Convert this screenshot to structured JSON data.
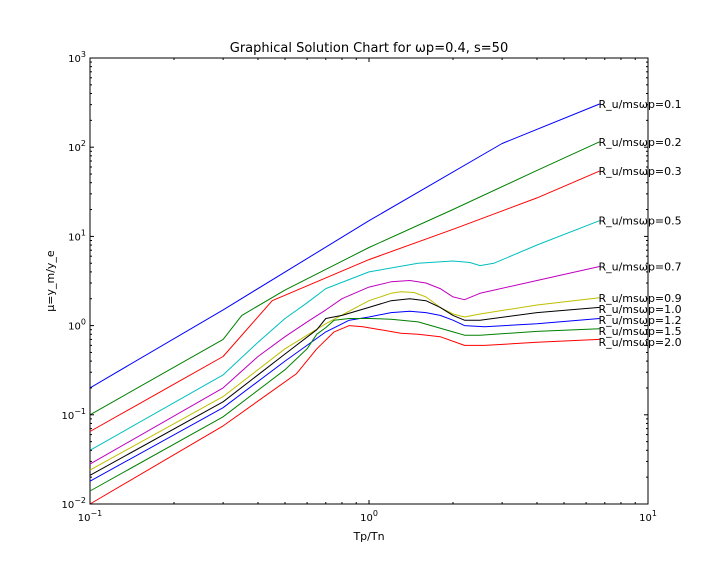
{
  "chart_data": {
    "type": "line",
    "title": "Graphical Solution Chart for ωp=0.4, s=50",
    "xlabel": "Tp/Tn",
    "ylabel": "μ=y_m/y_e",
    "xscale": "log",
    "yscale": "log",
    "xlim": [
      0.1,
      10
    ],
    "ylim": [
      0.01,
      1000
    ],
    "x_ticks": [
      {
        "value": 0.1,
        "base": "10",
        "exp": "−1"
      },
      {
        "value": 1,
        "base": "10",
        "exp": "0"
      },
      {
        "value": 10,
        "base": "10",
        "exp": "1"
      }
    ],
    "y_ticks": [
      {
        "value": 0.01,
        "base": "10",
        "exp": "−2"
      },
      {
        "value": 0.1,
        "base": "10",
        "exp": "−1"
      },
      {
        "value": 1,
        "base": "10",
        "exp": "0"
      },
      {
        "value": 10,
        "base": "10",
        "exp": "1"
      },
      {
        "value": 100,
        "base": "10",
        "exp": "2"
      },
      {
        "value": 1000,
        "base": "10",
        "exp": "3"
      }
    ],
    "grid": false,
    "series": [
      {
        "name": "R_u/msωp=0.1",
        "color": "#0000ff",
        "x": [
          0.1,
          0.3,
          1,
          3,
          6.7
        ],
        "y": [
          0.2,
          1.5,
          15,
          110,
          305
        ]
      },
      {
        "name": "R_u/msωp=0.2",
        "color": "#008000",
        "x": [
          0.1,
          0.3,
          0.35,
          0.5,
          1,
          2,
          4,
          6.7
        ],
        "y": [
          0.1,
          0.7,
          1.3,
          2.5,
          7.5,
          20,
          55,
          115
        ]
      },
      {
        "name": "R_u/msωp=0.3",
        "color": "#ff0000",
        "x": [
          0.1,
          0.3,
          0.45,
          1,
          2,
          4,
          6.7
        ],
        "y": [
          0.065,
          0.45,
          1.9,
          5.5,
          12,
          27,
          54
        ]
      },
      {
        "name": "R_u/msωp=0.5",
        "color": "#00bfbf",
        "x": [
          0.1,
          0.3,
          0.4,
          0.5,
          0.6,
          0.7,
          1,
          1.5,
          2,
          2.3,
          2.5,
          2.8,
          4,
          6.7
        ],
        "y": [
          0.04,
          0.28,
          0.65,
          1.2,
          1.8,
          2.6,
          4,
          5,
          5.3,
          5.1,
          4.7,
          5,
          8,
          15
        ]
      },
      {
        "name": "R_u/msωp=0.7",
        "color": "#bf00bf",
        "x": [
          0.1,
          0.3,
          0.4,
          0.5,
          0.6,
          0.7,
          0.8,
          1,
          1.2,
          1.4,
          1.6,
          1.8,
          2,
          2.2,
          2.5,
          4,
          6.7
        ],
        "y": [
          0.028,
          0.2,
          0.45,
          0.75,
          1.1,
          1.5,
          2,
          2.7,
          3.1,
          3.2,
          3,
          2.6,
          2.1,
          1.95,
          2.3,
          3.2,
          4.6
        ]
      },
      {
        "name": "R_u/msωp=0.9",
        "color": "#bfbf00",
        "x": [
          0.1,
          0.3,
          0.5,
          0.7,
          0.9,
          1,
          1.2,
          1.3,
          1.45,
          1.6,
          1.8,
          2,
          2.2,
          2.5,
          4,
          6.7
        ],
        "y": [
          0.024,
          0.16,
          0.55,
          1.05,
          1.6,
          1.9,
          2.3,
          2.4,
          2.35,
          2.1,
          1.6,
          1.35,
          1.25,
          1.35,
          1.7,
          2.05
        ]
      },
      {
        "name": "R_u/msωp=1.0",
        "color": "#000000",
        "x": [
          0.1,
          0.3,
          0.5,
          0.65,
          0.7,
          0.8,
          1,
          1.2,
          1.4,
          1.6,
          1.8,
          2,
          2.2,
          2.5,
          4,
          6.7
        ],
        "y": [
          0.021,
          0.14,
          0.48,
          0.9,
          1.2,
          1.3,
          1.6,
          1.9,
          2,
          1.9,
          1.6,
          1.3,
          1.15,
          1.15,
          1.4,
          1.6
        ]
      },
      {
        "name": "R_u/msωp=1.2",
        "color": "#0000ff",
        "x": [
          0.1,
          0.3,
          0.5,
          0.7,
          0.85,
          1,
          1.2,
          1.4,
          1.6,
          1.8,
          2,
          2.2,
          2.6,
          4,
          6.7
        ],
        "y": [
          0.018,
          0.12,
          0.4,
          0.85,
          1.15,
          1.25,
          1.4,
          1.45,
          1.4,
          1.3,
          1.15,
          1,
          0.97,
          1.05,
          1.2
        ]
      },
      {
        "name": "R_u/msωp=1.5",
        "color": "#008000",
        "x": [
          0.1,
          0.3,
          0.5,
          0.6,
          0.65,
          0.7,
          0.75,
          0.85,
          1,
          1.2,
          1.5,
          2,
          2.2,
          2.5,
          4,
          6.7
        ],
        "y": [
          0.014,
          0.095,
          0.32,
          0.55,
          0.8,
          0.95,
          1.15,
          1.2,
          1.2,
          1.18,
          1.1,
          0.85,
          0.78,
          0.78,
          0.86,
          0.92
        ]
      },
      {
        "name": "R_u/msωp=2.0",
        "color": "#ff0000",
        "x": [
          0.1,
          0.3,
          0.55,
          0.65,
          0.75,
          0.85,
          0.95,
          1.1,
          1.3,
          1.5,
          1.8,
          2.2,
          2.6,
          4,
          6.7
        ],
        "y": [
          0.01,
          0.075,
          0.29,
          0.55,
          0.85,
          1,
          0.97,
          0.9,
          0.82,
          0.8,
          0.75,
          0.6,
          0.6,
          0.65,
          0.7
        ]
      }
    ]
  }
}
